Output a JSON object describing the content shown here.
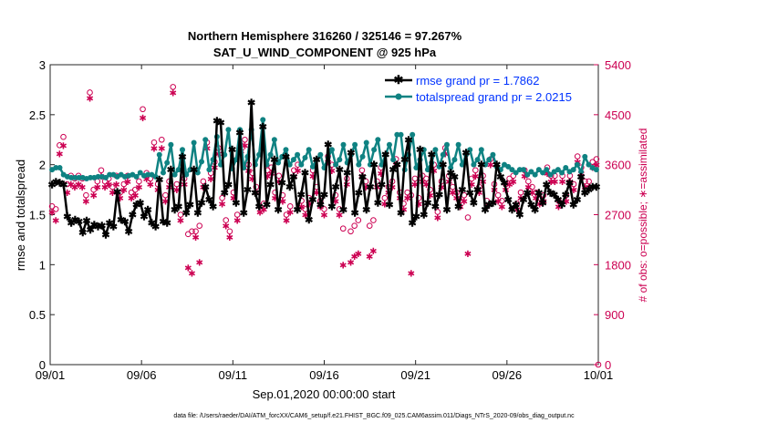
{
  "chart_data": {
    "type": "line",
    "title": "Northern Hemisphere 316260 / 325146 = 97.267%",
    "subtitle": "SAT_U_WIND_COMPONENT @ 925 hPa",
    "xlabel": "Sep.01,2020 00:00:00 start",
    "ylabel_left": "rmse and totalspread",
    "ylabel_right": "# of obs: o=possible; ∗=assimilated",
    "footer": "data file: /Users/raeder/DAI/ATM_forcXX/CAM6_setup/f.e21.FHIST_BGC.f09_025.CAM6assim.011/Diags_NTrS_2020-09/obs_diag_output.nc",
    "x_ticks": [
      "09/01",
      "09/06",
      "09/11",
      "09/16",
      "09/21",
      "09/26",
      "10/01"
    ],
    "y_ticks_left": [
      "0",
      "0.5",
      "1",
      "1.5",
      "2",
      "2.5",
      "3"
    ],
    "y_ticks_right": [
      "0",
      "900",
      "1800",
      "2700",
      "3600",
      "4500",
      "5400"
    ],
    "xlim_days": [
      0,
      30
    ],
    "ylim_left": [
      0,
      3
    ],
    "ylim_right": [
      0,
      5400
    ],
    "legend_position": "top-right",
    "legend": [
      {
        "label": "rmse grand pr = 1.7862",
        "color": "#000000"
      },
      {
        "label": "totalspread grand pr = 2.0215",
        "color": "#0f8282"
      }
    ],
    "colors": {
      "rmse": "#000000",
      "spread": "#0f8282",
      "obs": "#cc0052",
      "legend_text": "#0033ff"
    },
    "series": [
      {
        "name": "rmse",
        "values": [
          1.8,
          1.83,
          1.82,
          1.8,
          1.48,
          1.42,
          1.45,
          1.43,
          1.32,
          1.44,
          1.35,
          1.4,
          1.38,
          1.39,
          1.3,
          1.42,
          1.38,
          1.73,
          1.45,
          1.43,
          1.33,
          1.5,
          1.6,
          1.62,
          1.48,
          1.55,
          1.42,
          1.38,
          1.85,
          1.43,
          1.42,
          1.95,
          1.55,
          1.58,
          2.08,
          1.52,
          1.6,
          1.95,
          1.52,
          1.62,
          1.78,
          1.65,
          1.58,
          2.44,
          2.42,
          1.72,
          1.8,
          2.15,
          1.62,
          2.32,
          1.52,
          1.75,
          2.62,
          1.72,
          1.58,
          2.38,
          1.6,
          1.8,
          2.05,
          1.55,
          1.82,
          2.08,
          1.78,
          1.88,
          1.55,
          1.7,
          1.92,
          1.45,
          1.65,
          2.05,
          1.6,
          1.7,
          2.2,
          1.58,
          1.78,
          1.95,
          1.55,
          1.92,
          2.12,
          1.52,
          1.72,
          1.88,
          1.55,
          1.78,
          2.0,
          1.62,
          1.8,
          2.1,
          1.6,
          1.95,
          2.0,
          1.52,
          2.05,
          2.25,
          1.42,
          1.48,
          2.15,
          1.5,
          1.62,
          2.1,
          1.58,
          1.7,
          2.0,
          1.55,
          1.92,
          1.88,
          1.58,
          1.75,
          2.12,
          1.72,
          1.62,
          1.75,
          2.0,
          1.55,
          1.6,
          1.62,
          2.0,
          1.88,
          1.82,
          1.65,
          1.55,
          1.6,
          1.5,
          1.65,
          1.72,
          1.6,
          1.55,
          1.72,
          1.62,
          1.8,
          1.72,
          1.7,
          1.65,
          1.6,
          1.7,
          1.82,
          1.6,
          1.65,
          1.88,
          1.72,
          1.75,
          1.78,
          1.78
        ]
      },
      {
        "name": "totalspread",
        "values": [
          1.95,
          1.97,
          1.97,
          1.9,
          1.88,
          1.87,
          1.87,
          1.87,
          1.87,
          1.86,
          1.87,
          1.87,
          1.88,
          1.88,
          1.87,
          1.9,
          1.9,
          1.88,
          1.9,
          1.88,
          1.89,
          1.9,
          1.88,
          1.92,
          1.89,
          1.9,
          1.9,
          1.88,
          2.1,
          1.92,
          2.02,
          2.2,
          1.9,
          1.95,
          2.15,
          1.9,
          1.95,
          2.22,
          1.92,
          2.03,
          2.25,
          1.95,
          2.05,
          2.28,
          2.0,
          2.1,
          2.35,
          1.96,
          2.05,
          2.35,
          1.97,
          2.08,
          2.35,
          2.0,
          2.1,
          2.45,
          2.0,
          2.1,
          2.25,
          2.02,
          2.08,
          2.15,
          2.0,
          2.05,
          2.1,
          2.0,
          2.07,
          2.15,
          1.98,
          2.05,
          2.1,
          1.97,
          2.07,
          2.15,
          2.0,
          2.05,
          2.2,
          2.02,
          2.1,
          2.2,
          2.0,
          2.08,
          2.22,
          2.0,
          2.15,
          2.25,
          2.0,
          2.1,
          2.2,
          2.05,
          2.3,
          2.3,
          1.95,
          2.1,
          2.3,
          1.97,
          2.05,
          2.15,
          1.95,
          2.02,
          2.15,
          1.98,
          2.1,
          2.2,
          1.97,
          2.05,
          2.2,
          2.0,
          2.1,
          2.15,
          2.0,
          2.05,
          2.15,
          2.0,
          2.05,
          2.1,
          1.98,
          1.95,
          2.0,
          1.98,
          1.95,
          1.92,
          1.95,
          1.95,
          1.9,
          1.93,
          1.9,
          1.95,
          1.92,
          1.95,
          1.9,
          1.93,
          1.95,
          1.92,
          1.97,
          1.93,
          1.95,
          2.0,
          1.93,
          2.08,
          2.0,
          1.97,
          1.95
        ]
      },
      {
        "name": "obs_possible",
        "values": [
          2850,
          2800,
          3950,
          4100,
          3250,
          3400,
          3350,
          3400,
          3350,
          3050,
          4900,
          3150,
          3300,
          3500,
          3300,
          3350,
          3200,
          3400,
          3100,
          3250,
          3400,
          3100,
          3150,
          3300,
          4600,
          3450,
          3350,
          4000,
          3250,
          4050,
          3050,
          3300,
          5000,
          3250,
          2700,
          3350,
          2350,
          2400,
          2400,
          2500,
          3300,
          4000,
          3450,
          3650,
          3900,
          3000,
          2600,
          2400,
          3100,
          2700,
          3950,
          4050,
          3600,
          3450,
          3200,
          2850,
          2900,
          3500,
          3550,
          3100,
          3400,
          3050,
          2700,
          2850,
          3500,
          3600,
          2950,
          2800,
          3000,
          3500,
          3200,
          2950,
          2800,
          3750,
          3600,
          3050,
          2800,
          2450,
          3350,
          2400,
          2500,
          2600,
          3500,
          3300,
          2500,
          2600,
          3300,
          3550,
          3000,
          3200,
          3300,
          3700,
          3100,
          2900,
          3100,
          3050,
          3350,
          3000,
          3400,
          3350,
          3150,
          3600,
          2750,
          3300,
          3900,
          3400,
          3200,
          3100,
          2950,
          3050,
          2650,
          3350,
          3500,
          3200,
          3400,
          2950,
          3700,
          3250,
          3050,
          2950,
          3250,
          3350,
          3400,
          2900,
          3100,
          3500,
          3300,
          3200,
          3100,
          3000,
          3050,
          3550,
          3400,
          3400,
          2950,
          3400,
          3050,
          3400,
          3250,
          3750,
          3550,
          3300,
          3300,
          3650,
          3700
        ]
      },
      {
        "name": "obs_assimilated",
        "values": [
          2750,
          2600,
          3800,
          3950,
          3100,
          3250,
          3200,
          3250,
          3200,
          2950,
          4800,
          3050,
          3200,
          3400,
          3200,
          3250,
          3100,
          3250,
          3000,
          3150,
          3300,
          3000,
          3050,
          3200,
          4450,
          3350,
          3250,
          3900,
          3150,
          3900,
          2950,
          3200,
          4900,
          3150,
          2600,
          3250,
          1750,
          1650,
          2300,
          1850,
          3200,
          3900,
          3350,
          3550,
          3800,
          2900,
          2500,
          2300,
          3000,
          2600,
          3850,
          3950,
          3500,
          3350,
          3100,
          2750,
          2800,
          3400,
          3450,
          3000,
          3300,
          2950,
          2600,
          2750,
          3400,
          3500,
          2850,
          2700,
          2900,
          3400,
          3100,
          2850,
          2700,
          3650,
          3500,
          2950,
          2700,
          1800,
          3250,
          1850,
          1950,
          2000,
          3400,
          3200,
          1950,
          2050,
          3200,
          3450,
          2900,
          3100,
          3200,
          3600,
          3000,
          2800,
          3000,
          1650,
          3250,
          2900,
          3300,
          3250,
          3050,
          3500,
          2650,
          3200,
          3800,
          3300,
          3100,
          3000,
          2850,
          2950,
          2000,
          3250,
          3400,
          3100,
          3300,
          2850,
          3600,
          3150,
          2950,
          2850,
          3150,
          3250,
          3300,
          2800,
          3000,
          3400,
          3200,
          3100,
          3000,
          2900,
          2950,
          3450,
          3300,
          3300,
          2850,
          3300,
          2950,
          3300,
          3150,
          3650,
          3450,
          3200,
          3200,
          3550,
          3600
        ]
      }
    ]
  }
}
